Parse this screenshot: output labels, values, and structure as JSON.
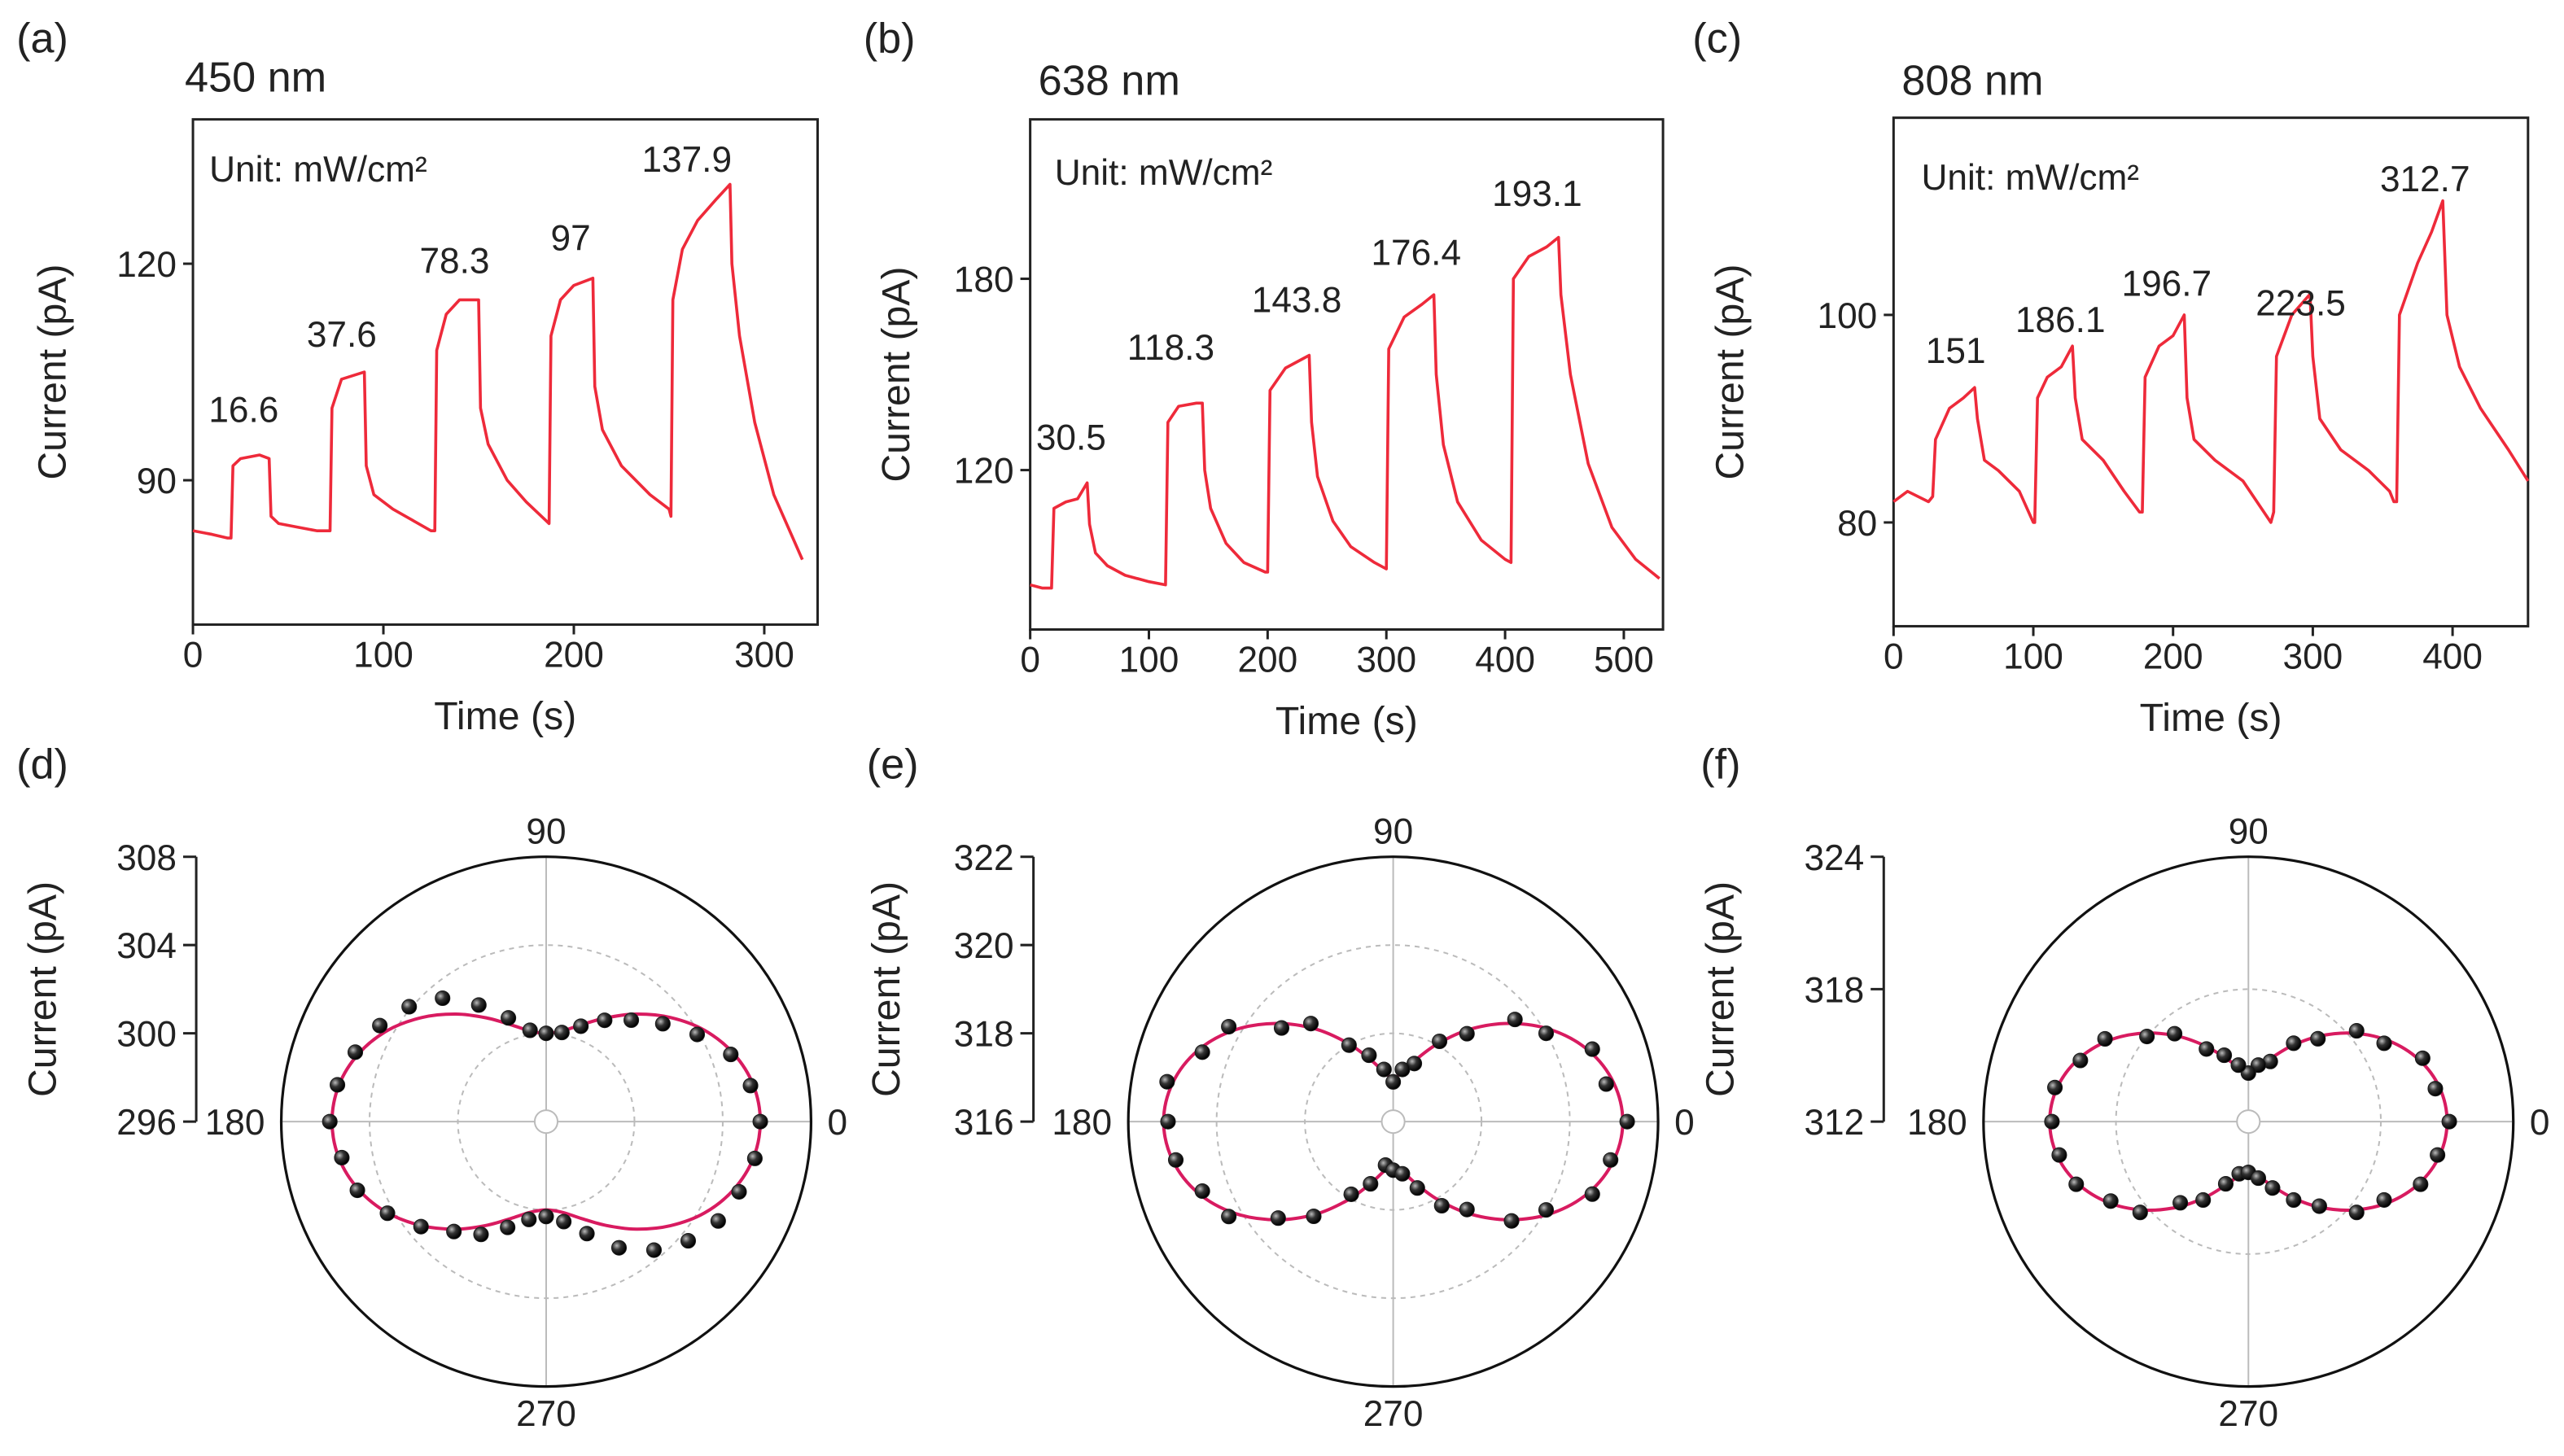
{
  "chart_data": [
    {
      "type": "line",
      "panel_label": "(a)",
      "title": "450 nm",
      "annotation": "Unit: mW/cm²",
      "xlabel": "Time (s)",
      "ylabel": "Current (pA)",
      "x": [
        0,
        10,
        18,
        20,
        21,
        25,
        35,
        40,
        41,
        45,
        55,
        65,
        72,
        73,
        78,
        90,
        91,
        95,
        105,
        115,
        125,
        127,
        128,
        133,
        140,
        150,
        151,
        155,
        165,
        175,
        185,
        187,
        188,
        193,
        200,
        210,
        211,
        215,
        225,
        240,
        250,
        251,
        252,
        257,
        265,
        275,
        282,
        283,
        287,
        295,
        305,
        315,
        320
      ],
      "values": [
        83,
        82.5,
        82,
        82,
        92,
        93,
        93.5,
        93,
        85,
        84,
        83.5,
        83,
        83,
        100,
        104,
        105,
        92,
        88,
        86,
        84.5,
        83,
        83,
        108,
        113,
        115,
        115,
        100,
        95,
        90,
        87,
        84.5,
        84,
        110,
        115,
        117,
        118,
        103,
        97,
        92,
        88,
        86,
        85,
        115,
        122,
        126,
        129,
        131,
        120,
        110,
        98,
        88,
        82,
        79
      ],
      "color": "#ee2a3a",
      "xlim": [
        0,
        328
      ],
      "ylim": [
        70,
        140
      ],
      "xticks": [
        0,
        100,
        200,
        300
      ],
      "yticks": [
        90,
        120
      ],
      "power_labels": [
        16.6,
        37.6,
        78.3,
        97,
        137.9
      ]
    },
    {
      "type": "line",
      "panel_label": "(b)",
      "title": "638 nm",
      "annotation": "Unit: mW/cm²",
      "xlabel": "Time (s)",
      "ylabel": "Current (pA)",
      "x": [
        0,
        10,
        18,
        20,
        30,
        40,
        48,
        50,
        55,
        65,
        80,
        100,
        114,
        116,
        125,
        140,
        145,
        147,
        152,
        165,
        180,
        198,
        200,
        202,
        215,
        230,
        235,
        237,
        242,
        255,
        270,
        290,
        300,
        302,
        315,
        330,
        340,
        342,
        348,
        360,
        380,
        400,
        405,
        407,
        420,
        435,
        445,
        447,
        455,
        470,
        490,
        510,
        530
      ],
      "values": [
        84,
        83,
        83,
        108,
        110,
        111,
        116,
        103,
        94,
        90,
        87,
        85,
        84,
        135,
        140,
        141,
        141,
        120,
        108,
        97,
        91,
        88,
        88,
        145,
        152,
        155,
        156,
        135,
        118,
        104,
        96,
        91,
        89,
        158,
        168,
        172,
        175,
        150,
        128,
        110,
        98,
        92,
        91,
        180,
        187,
        190,
        193,
        175,
        150,
        122,
        102,
        92,
        86
      ],
      "color": "#ee2a3a",
      "xlim": [
        0,
        533
      ],
      "ylim": [
        70,
        230
      ],
      "xticks": [
        0,
        100,
        200,
        300,
        400,
        500
      ],
      "yticks": [
        120,
        180
      ],
      "power_labels": [
        30.5,
        118.3,
        143.8,
        176.4,
        193.1
      ]
    },
    {
      "type": "line",
      "panel_label": "(c)",
      "title": "808 nm",
      "annotation": "Unit: mW/cm²",
      "xlabel": "Time (s)",
      "ylabel": "Current (pA)",
      "x": [
        0,
        10,
        25,
        28,
        30,
        40,
        50,
        58,
        60,
        65,
        75,
        90,
        100,
        101,
        103,
        110,
        120,
        128,
        130,
        135,
        150,
        165,
        176,
        178,
        180,
        190,
        200,
        208,
        210,
        215,
        230,
        250,
        270,
        272,
        274,
        285,
        298,
        300,
        305,
        320,
        340,
        355,
        358,
        360,
        362,
        375,
        385,
        393,
        396,
        405,
        420,
        440,
        454
      ],
      "values": [
        82,
        83,
        82,
        82.5,
        88,
        91,
        92,
        93,
        90,
        86,
        85,
        83,
        80,
        80,
        92,
        94,
        95,
        97,
        92,
        88,
        86,
        83,
        81,
        81,
        94,
        97,
        98,
        100,
        92,
        88,
        86,
        84,
        80,
        81,
        96,
        100,
        102,
        96,
        90,
        87,
        85,
        83,
        82,
        82,
        100,
        105,
        108,
        111,
        100,
        95,
        91,
        87,
        84
      ],
      "color": "#ee2a3a",
      "xlim": [
        0,
        454
      ],
      "ylim": [
        70,
        119
      ],
      "xticks": [
        0,
        100,
        200,
        300,
        400
      ],
      "yticks": [
        80,
        100
      ],
      "power_labels": [
        151,
        186.1,
        196.7,
        223.5,
        312.7
      ]
    },
    {
      "type": "polar",
      "panel_label": "(d)",
      "ylabel": "Current (pA)",
      "rlim": [
        296,
        308
      ],
      "rticks": [
        296,
        300,
        304,
        308
      ],
      "angle_ticks": [
        0,
        90,
        180,
        270
      ],
      "theta": [
        0,
        10,
        20,
        30,
        40,
        50,
        60,
        70,
        80,
        90,
        100,
        110,
        120,
        130,
        140,
        150,
        160,
        170,
        180,
        190,
        200,
        210,
        220,
        230,
        240,
        250,
        260,
        270,
        280,
        290,
        300,
        310,
        320,
        330,
        340,
        350
      ],
      "values": [
        305.7,
        305.4,
        304.9,
        303.9,
        302.9,
        302.0,
        301.3,
        300.6,
        300.1,
        300.0,
        300.2,
        301.0,
        302.1,
        303.3,
        304.1,
        304.7,
        305.2,
        305.6,
        305.8,
        305.4,
        305.1,
        304.3,
        303.4,
        302.5,
        301.9,
        301.1,
        300.5,
        300.3,
        300.6,
        301.4,
        302.6,
        303.6,
        304.4,
        305.0,
        305.3,
        305.6
      ],
      "fit_values": [
        305.7,
        305.53,
        305.03,
        304.28,
        303.34,
        302.36,
        301.43,
        300.67,
        300.17,
        300.0,
        300.17,
        300.67,
        301.43,
        302.36,
        303.34,
        304.28,
        305.03,
        305.53,
        305.7,
        305.53,
        305.03,
        304.28,
        303.34,
        302.36,
        301.43,
        300.67,
        300.17,
        300.0,
        300.17,
        300.67,
        301.43,
        302.36,
        303.34,
        304.28,
        305.03,
        305.53
      ],
      "point_color": "#1a1a1a",
      "fit_color": "#d81b60"
    },
    {
      "type": "polar",
      "panel_label": "(e)",
      "ylabel": "Current (pA)",
      "rlim": [
        316,
        322
      ],
      "rticks": [
        316,
        318,
        320,
        322
      ],
      "angle_ticks": [
        0,
        90,
        180,
        270
      ],
      "theta": [
        0,
        10,
        20,
        30,
        40,
        50,
        60,
        70,
        80,
        90,
        100,
        110,
        120,
        130,
        140,
        150,
        160,
        170,
        180,
        190,
        200,
        210,
        220,
        230,
        240,
        250,
        260,
        270,
        280,
        290,
        300,
        310,
        320,
        330,
        340,
        350
      ],
      "values": [
        321.3,
        320.9,
        320.8,
        320.0,
        319.6,
        318.6,
        318.1,
        317.4,
        317.2,
        316.9,
        317.2,
        317.6,
        318.0,
        318.9,
        319.3,
        320.3,
        320.6,
        321.2,
        321.1,
        321.0,
        320.6,
        320.3,
        319.4,
        318.8,
        317.9,
        317.5,
        317.0,
        317.1,
        317.2,
        317.6,
        318.2,
        318.6,
        319.5,
        320.0,
        320.8,
        321.0
      ],
      "fit_values": [
        321.2,
        321.07,
        320.71,
        320.15,
        319.46,
        318.74,
        318.05,
        317.49,
        317.13,
        317.0,
        317.13,
        317.49,
        318.05,
        318.74,
        319.46,
        320.15,
        320.71,
        321.07,
        321.2,
        321.07,
        320.71,
        320.15,
        319.46,
        318.74,
        318.05,
        317.49,
        317.13,
        317.0,
        317.13,
        317.49,
        318.05,
        318.74,
        319.46,
        320.15,
        320.71,
        321.07
      ],
      "point_color": "#1a1a1a",
      "fit_color": "#d81b60"
    },
    {
      "type": "polar",
      "panel_label": "(f)",
      "ylabel": "Current (pA)",
      "rlim": [
        312,
        324
      ],
      "rticks": [
        312,
        318,
        324
      ],
      "angle_ticks": [
        0,
        90,
        180,
        270
      ],
      "theta": [
        0,
        10,
        20,
        30,
        40,
        50,
        60,
        70,
        80,
        90,
        100,
        110,
        120,
        130,
        140,
        150,
        160,
        170,
        180,
        190,
        200,
        210,
        220,
        230,
        240,
        250,
        260,
        270,
        280,
        290,
        300,
        310,
        320,
        330,
        340,
        350
      ],
      "values": [
        321.1,
        320.6,
        320.4,
        319.1,
        318.4,
        316.9,
        316.1,
        314.9,
        314.6,
        314.2,
        314.6,
        315.2,
        315.8,
        317.2,
        318.0,
        319.5,
        320.1,
        320.9,
        320.9,
        320.7,
        320.3,
        319.2,
        318.4,
        316.8,
        316.1,
        315.0,
        314.4,
        314.3,
        314.6,
        315.2,
        316.1,
        317.0,
        318.4,
        319.1,
        320.3,
        320.7
      ],
      "fit_values": [
        321.0,
        320.8,
        320.22,
        319.33,
        318.23,
        317.07,
        315.98,
        315.08,
        314.5,
        314.3,
        314.5,
        315.08,
        315.98,
        317.07,
        318.23,
        319.33,
        320.22,
        320.8,
        321.0,
        320.8,
        320.22,
        319.33,
        318.23,
        317.07,
        315.98,
        315.08,
        314.5,
        314.3,
        314.5,
        315.08,
        315.98,
        317.07,
        318.23,
        319.33,
        320.22,
        320.8
      ],
      "point_color": "#1a1a1a",
      "fit_color": "#d81b60"
    }
  ]
}
